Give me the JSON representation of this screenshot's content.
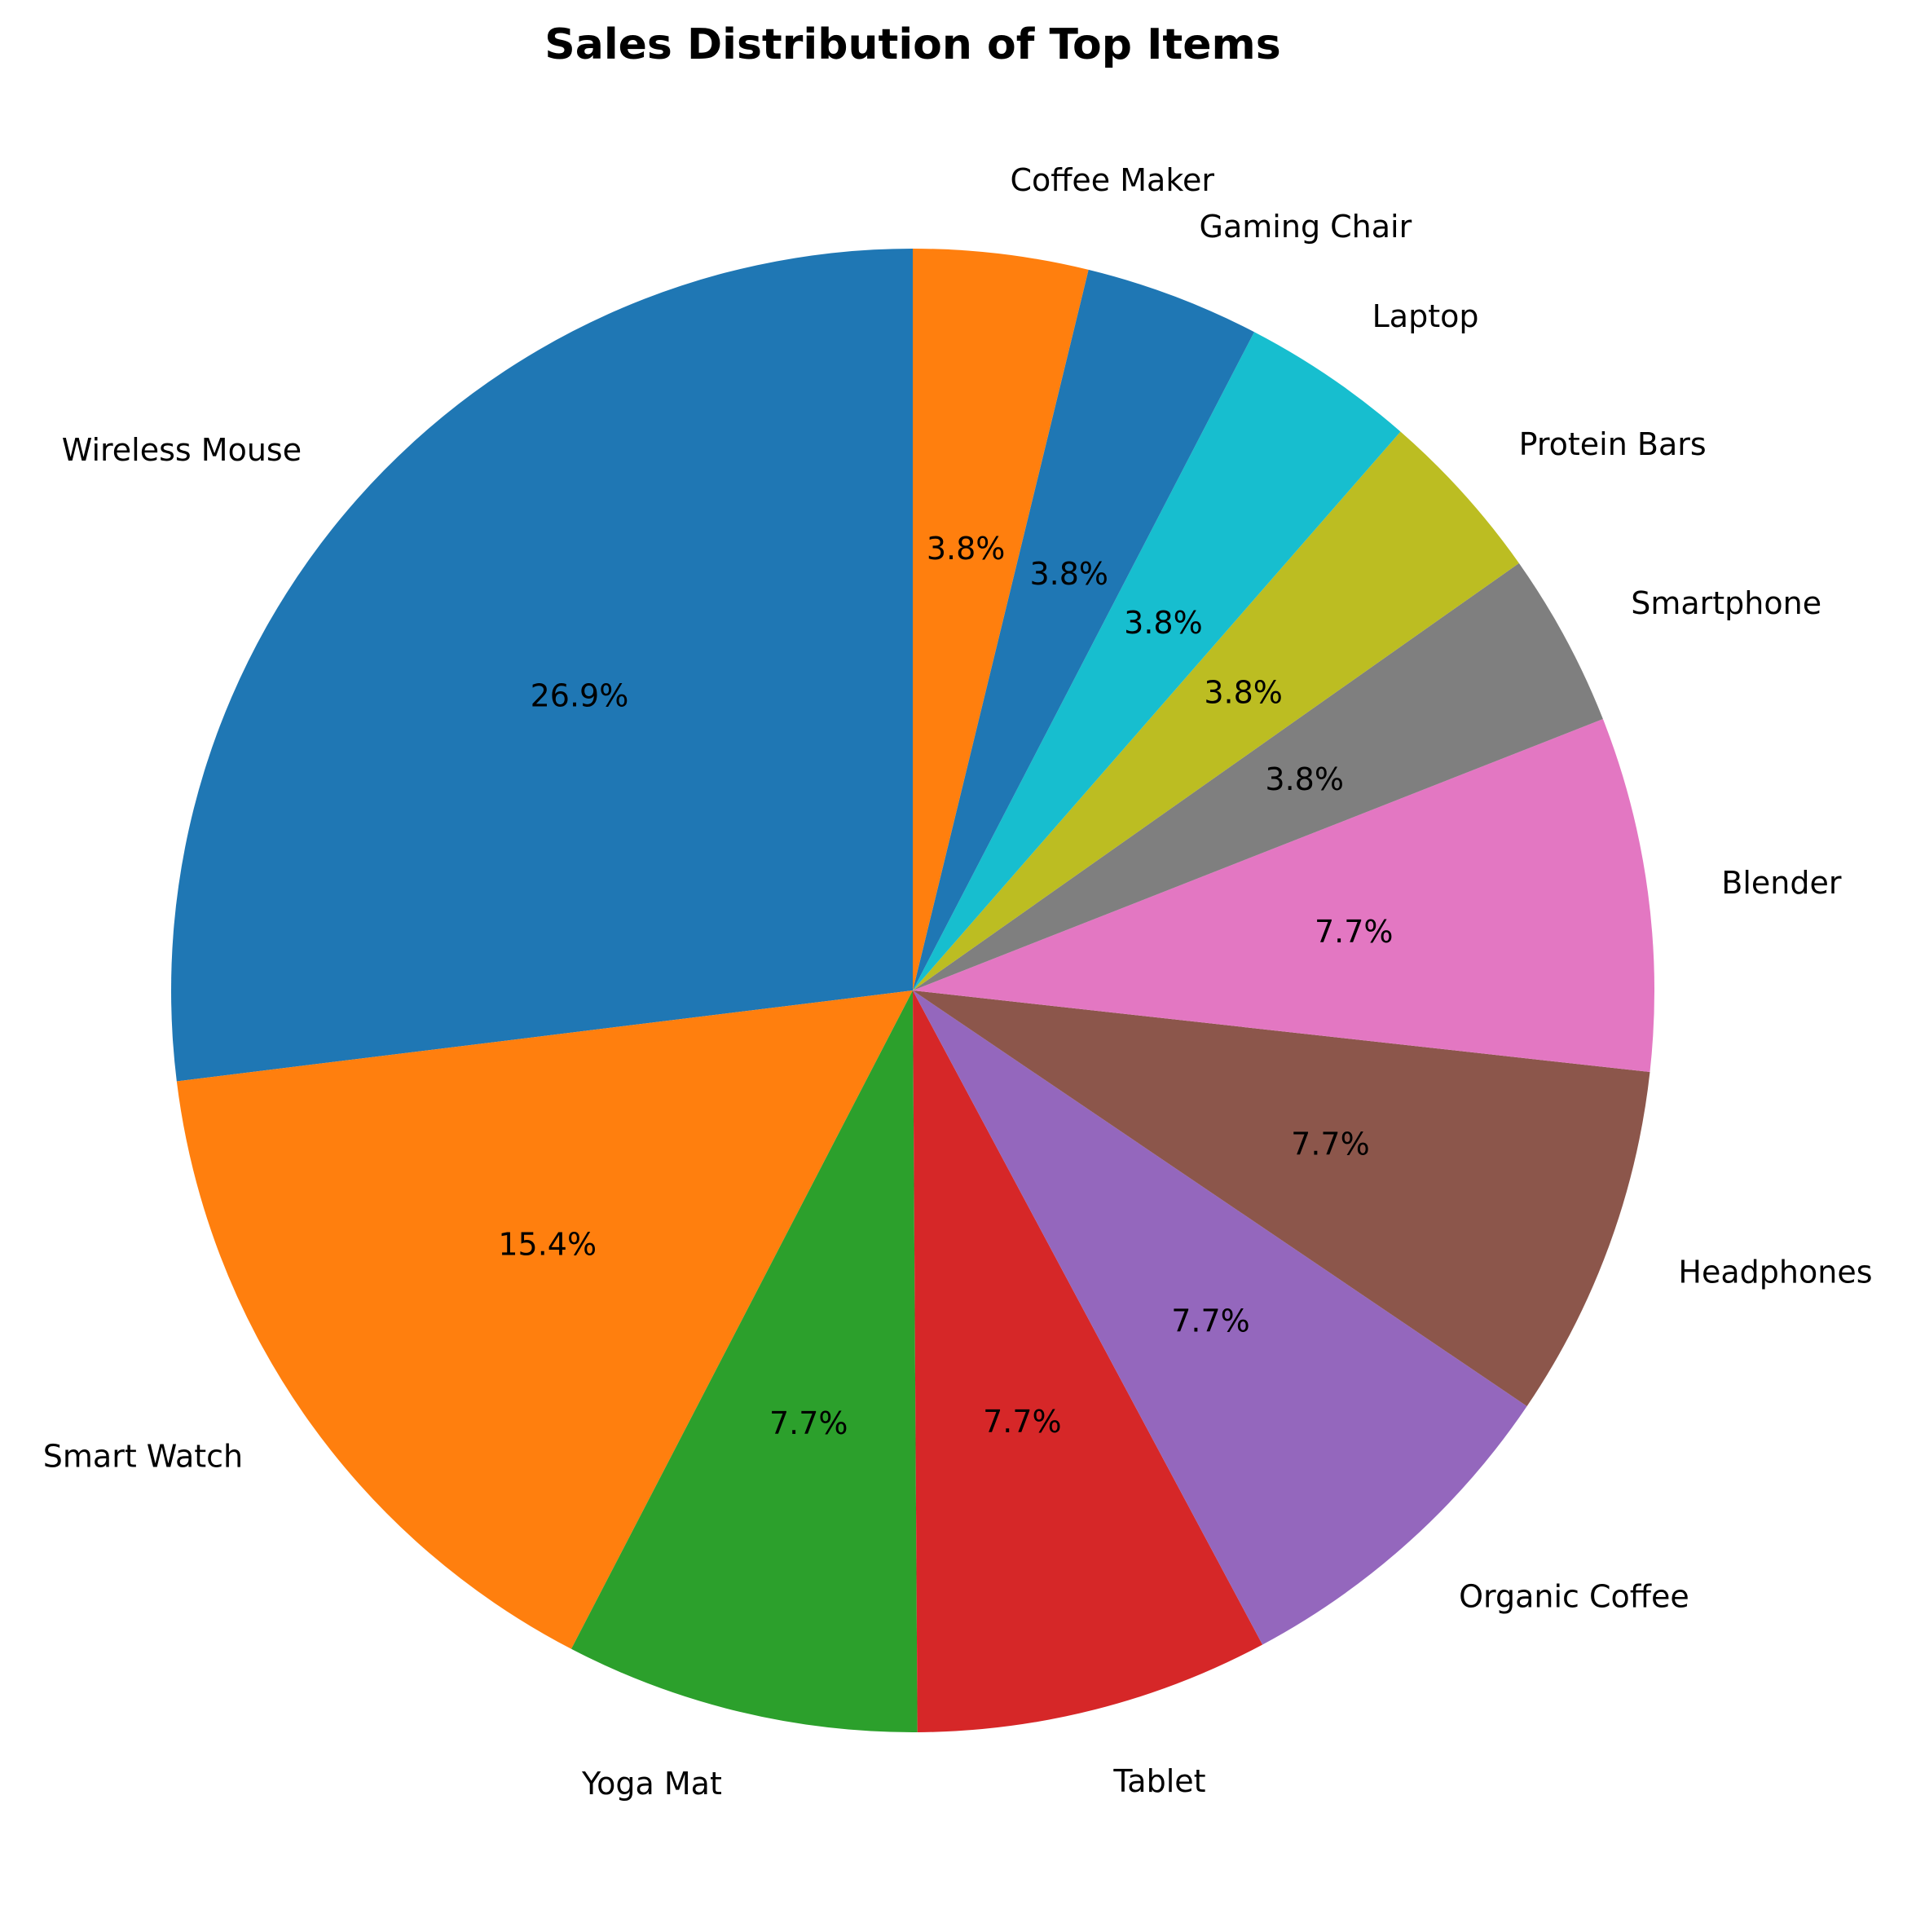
{
  "chart_data": {
    "type": "pie",
    "title": "Sales Distribution of Top Items",
    "start_angle_deg": 90,
    "direction": "counterclockwise",
    "slices": [
      {
        "label": "Wireless Mouse",
        "value": 26.9,
        "pct_text": "26.9%",
        "color": "#1f77b4"
      },
      {
        "label": "Smart Watch",
        "value": 15.4,
        "pct_text": "15.4%",
        "color": "#ff7f0e"
      },
      {
        "label": "Yoga Mat",
        "value": 7.7,
        "pct_text": "7.7%",
        "color": "#2ca02c"
      },
      {
        "label": "Tablet",
        "value": 7.7,
        "pct_text": "7.7%",
        "color": "#d62728"
      },
      {
        "label": "Organic Coffee",
        "value": 7.7,
        "pct_text": "7.7%",
        "color": "#9467bd"
      },
      {
        "label": "Headphones",
        "value": 7.7,
        "pct_text": "7.7%",
        "color": "#8c564b"
      },
      {
        "label": "Blender",
        "value": 7.7,
        "pct_text": "7.7%",
        "color": "#e377c2"
      },
      {
        "label": "Smartphone",
        "value": 3.8,
        "pct_text": "3.8%",
        "color": "#7f7f7f"
      },
      {
        "label": "Protein Bars",
        "value": 3.8,
        "pct_text": "3.8%",
        "color": "#bcbd22"
      },
      {
        "label": "Laptop",
        "value": 3.8,
        "pct_text": "3.8%",
        "color": "#17becf"
      },
      {
        "label": "Gaming Chair",
        "value": 3.8,
        "pct_text": "3.8%",
        "color": "#1f77b4"
      },
      {
        "label": "Coffee Maker",
        "value": 3.8,
        "pct_text": "3.8%",
        "color": "#ff7f0e"
      }
    ]
  }
}
